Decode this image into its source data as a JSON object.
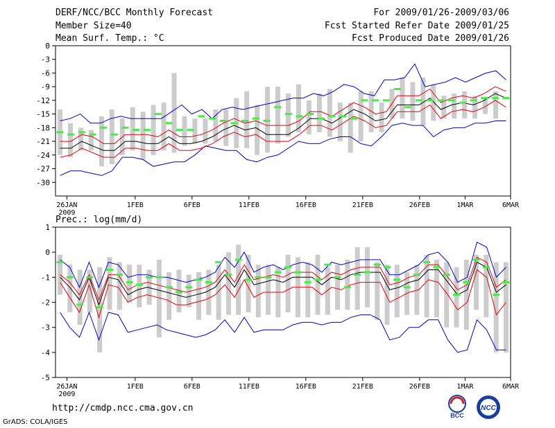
{
  "header": {
    "title": "DERF/NCC/BCC Monthly Forecast",
    "member_size": "Member Size=40",
    "variable": "Mean Surf. Temp.: °C",
    "period": "For 2009/01/26-2009/03/06",
    "started": "Fcst Started Refer Date 2009/01/25",
    "produced": "Fcst Produced Date 2009/01/26"
  },
  "footer": {
    "url": "http://cmdp.ncc.cma.gov.cn",
    "grads": "GrADS: COLA/IGES"
  },
  "logos": {
    "left": "BCC",
    "right": "NCC"
  },
  "colors": {
    "ensemble_mean": "#000000",
    "spread_inner": "#e8000b",
    "spread_outer": "#0000cc",
    "box": "#cccccc",
    "marker": "#44ee44"
  },
  "chart_data": [
    {
      "type": "line",
      "title": "Mean Surf. Temp.: °C",
      "ylabel": "°C",
      "ylim": [
        -33,
        0
      ],
      "yticks": [
        0,
        -3,
        -6,
        -9,
        -12,
        -15,
        -18,
        -21,
        -24,
        -27,
        -30
      ],
      "ytick_labels": [
        "0",
        "-3",
        "-6",
        "-9",
        "-12",
        "-15",
        "-18",
        "-21",
        "-24",
        "-27",
        "-30"
      ],
      "xlim": [
        0,
        40
      ],
      "xtick_pos": [
        1,
        7,
        12,
        17,
        22,
        27,
        32,
        36,
        40
      ],
      "xtick_labels": [
        "26JAN",
        "1FEB",
        "6FEB",
        "11FEB",
        "16FEB",
        "21FEB",
        "26FEB",
        "1MAR",
        "6MAR"
      ],
      "year_label": "2009",
      "series": [
        {
          "name": "ensemble mean",
          "values": [
            -22.5,
            -22.5,
            -21,
            -22,
            -23,
            -23,
            -21,
            -21,
            -21.5,
            -21.5,
            -20,
            -21.5,
            -21.5,
            -21,
            -20,
            -18.5,
            -17.5,
            -18.5,
            -18,
            -19.5,
            -19.5,
            -19.5,
            -18,
            -16,
            -16,
            -17,
            -15.5,
            -14,
            -15,
            -16.5,
            -16,
            -13,
            -13,
            -13,
            -11.5,
            -14,
            -13,
            -12.5,
            -13,
            -12,
            -10.5,
            -11.5
          ]
        },
        {
          "name": "mean + 1 sd",
          "values": [
            -21,
            -21,
            -19.5,
            -20,
            -21.5,
            -21.5,
            -19.5,
            -19.5,
            -19.5,
            -20,
            -18.5,
            -20,
            -20,
            -19.5,
            -18.5,
            -17,
            -16,
            -17,
            -16.5,
            -17.5,
            -17.5,
            -17.5,
            -16.5,
            -14.5,
            -14.5,
            -15.5,
            -14,
            -12.5,
            -13.5,
            -15,
            -14.5,
            -11,
            -11,
            -11,
            -9.5,
            -12.5,
            -11.5,
            -11,
            -11.5,
            -10.5,
            -9,
            -10
          ]
        },
        {
          "name": "mean - 1 sd",
          "values": [
            -24.5,
            -24,
            -22.5,
            -23.5,
            -24.5,
            -24.5,
            -22.5,
            -22.5,
            -23,
            -23,
            -21.5,
            -23,
            -23,
            -22.5,
            -21.5,
            -20,
            -19,
            -20,
            -19.5,
            -21,
            -21,
            -21,
            -19.5,
            -17.5,
            -17.5,
            -18.5,
            -17,
            -15.5,
            -16.5,
            -18,
            -17.5,
            -14.5,
            -14.5,
            -14.5,
            -13,
            -16,
            -14.5,
            -14,
            -14.5,
            -13.5,
            -12,
            -13.5
          ]
        },
        {
          "name": "max",
          "values": [
            -16.5,
            -16,
            -15,
            -17,
            -17,
            -16,
            -15.5,
            -16,
            -16,
            -16,
            -16,
            -14.5,
            -13,
            -15,
            -14,
            -16,
            -14,
            -13.5,
            -14,
            -13.5,
            -13,
            -12.5,
            -12,
            -11.5,
            -11.5,
            -10.5,
            -11,
            -10,
            -8.5,
            -9,
            -10.5,
            -11,
            -7.5,
            -7.5,
            -7,
            -4,
            -9,
            -8.5,
            -8,
            -7,
            -8,
            -7,
            -6,
            -5.5,
            -7.5
          ]
        },
        {
          "name": "min",
          "values": [
            -28.5,
            -27.5,
            -27.5,
            -28,
            -28.5,
            -27.5,
            -24.5,
            -24.5,
            -25,
            -26.5,
            -26,
            -25.5,
            -25.5,
            -24,
            -22,
            -22.5,
            -23,
            -23,
            -25,
            -25.5,
            -24.5,
            -24,
            -22.5,
            -21,
            -21.5,
            -21.5,
            -20.5,
            -20,
            -20,
            -21.5,
            -22,
            -20,
            -17.5,
            -17,
            -17.5,
            -17.5,
            -20,
            -18.5,
            -18,
            -18,
            -17,
            -17,
            -16.5,
            -16.5
          ]
        },
        {
          "name": "observed/marker",
          "values": [
            -19,
            -19.5,
            -19,
            -19.5,
            -18,
            -19.5,
            -18,
            -18.5,
            -18.5,
            -15,
            -17,
            -18.5,
            -18.5,
            -15.5,
            -16,
            -16.5,
            -17,
            -16.5,
            -16,
            -16.5,
            -13.5,
            -15,
            -15.5,
            -15,
            -16,
            -15.5,
            -15.5,
            -16,
            -12,
            -12,
            -12,
            -9.5,
            -13.5,
            -12,
            -12,
            -12,
            -12,
            -12.5,
            -12,
            -11.5,
            -11.5,
            -11.5
          ]
        },
        {
          "name": "box upper",
          "values": [
            -14,
            -17,
            -18,
            -18.5,
            -15.5,
            -14,
            -16,
            -13.5,
            -14.5,
            -13,
            -12.5,
            -6,
            -15.5,
            -16,
            -16,
            -14,
            -14,
            -11.5,
            -10,
            -13,
            -9,
            -9,
            -10.5,
            -8.5,
            -12,
            -10.5,
            -9.5,
            -12.5,
            -12.5,
            -10,
            -10,
            -12.5,
            -9.5,
            -7,
            -8,
            -7,
            -8.5,
            -11,
            -10.5,
            -10,
            -11,
            -11.5,
            -10,
            -9
          ]
        },
        {
          "name": "box lower",
          "values": [
            -24,
            -24.5,
            -23,
            -23,
            -26.5,
            -26,
            -24,
            -23,
            -25,
            -24,
            -23,
            -23.5,
            -22,
            -21.5,
            -21.5,
            -21,
            -22,
            -22.5,
            -22.5,
            -24,
            -23.5,
            -21.5,
            -20,
            -19,
            -19.5,
            -19,
            -20,
            -21,
            -23.5,
            -21,
            -19,
            -19,
            -16,
            -16,
            -16.5,
            -17.5,
            -16.5,
            -16,
            -16,
            -16,
            -16,
            -15,
            -16
          ]
        }
      ]
    },
    {
      "type": "line",
      "title": "Prec.: log(mm/d)",
      "ylabel": "log(mm/d)",
      "ylim": [
        -5,
        1
      ],
      "yticks": [
        1,
        0,
        -1,
        -2,
        -3,
        -4,
        -5
      ],
      "ytick_labels": [
        "1",
        "0",
        "-1",
        "-2",
        "-3",
        "-4",
        "-5"
      ],
      "xlim": [
        0,
        40
      ],
      "xtick_pos": [
        1,
        7,
        12,
        17,
        22,
        27,
        32,
        36,
        40
      ],
      "xtick_labels": [
        "26JAN",
        "1FEB",
        "6FEB",
        "11FEB",
        "16FEB",
        "21FEB",
        "26FEB",
        "1MAR",
        "6MAR"
      ],
      "year_label": "2009",
      "series": [
        {
          "name": "ensemble mean",
          "values": [
            -1,
            -1.4,
            -1.9,
            -1,
            -2.1,
            -1,
            -1.1,
            -1.7,
            -1.5,
            -1.4,
            -1.5,
            -1.6,
            -1.7,
            -1.8,
            -1.7,
            -1.6,
            -1.4,
            -0.9,
            -1.4,
            -0.7,
            -1.3,
            -1.2,
            -1.1,
            -1.2,
            -1,
            -1,
            -1,
            -1.3,
            -1,
            -1.1,
            -0.9,
            -0.8,
            -0.8,
            -0.8,
            -1.5,
            -1.4,
            -1.2,
            -1.1,
            -0.7,
            -0.7,
            -1.2,
            -1.7,
            -1.5,
            -0.4,
            -0.6,
            -1.6,
            -1.3
          ]
        },
        {
          "name": "mean + 1 sd",
          "values": [
            -0.9,
            -1.2,
            -1.7,
            -0.9,
            -1.9,
            -0.9,
            -0.9,
            -1.5,
            -1.3,
            -1.2,
            -1.3,
            -1.4,
            -1.5,
            -1.6,
            -1.5,
            -1.4,
            -1.2,
            -0.7,
            -1.2,
            -0.5,
            -1.1,
            -1,
            -0.9,
            -1,
            -0.8,
            -0.8,
            -0.8,
            -1.1,
            -0.8,
            -0.9,
            -0.7,
            -0.6,
            -0.6,
            -0.6,
            -1.3,
            -1.2,
            -1,
            -0.9,
            -0.5,
            -0.5,
            -1,
            -1.5,
            -1.3,
            -0.2,
            -0.4,
            -1.4,
            -1.1
          ]
        },
        {
          "name": "mean - 1 sd",
          "values": [
            -1.2,
            -1.8,
            -2.4,
            -1.3,
            -2.6,
            -1.3,
            -1.4,
            -2,
            -1.8,
            -1.7,
            -1.8,
            -1.9,
            -2.1,
            -2.1,
            -2,
            -1.9,
            -1.7,
            -1.3,
            -1.8,
            -1.1,
            -1.8,
            -1.6,
            -1.6,
            -1.6,
            -1.4,
            -1.4,
            -1.4,
            -1.7,
            -1.4,
            -1.5,
            -1.3,
            -1.2,
            -1.2,
            -1.2,
            -2,
            -1.8,
            -1.6,
            -1.5,
            -1.1,
            -1.2,
            -1.7,
            -2.3,
            -2,
            -0.7,
            -1,
            -2.5,
            -2
          ]
        },
        {
          "name": "max",
          "values": [
            -0.3,
            -0.6,
            -1.4,
            -0.4,
            -1.4,
            -0.4,
            -0.5,
            -1,
            -0.9,
            -0.9,
            -1,
            -1,
            -1.1,
            -1.2,
            -1.1,
            -1,
            -0.8,
            -0.2,
            -0.6,
            0,
            -0.8,
            -0.6,
            -0.5,
            -0.7,
            -0.5,
            -0.4,
            -0.5,
            -0.8,
            -0.4,
            -0.5,
            -0.4,
            -0.3,
            -0.3,
            -0.3,
            -0.9,
            -0.9,
            -0.7,
            -0.5,
            -0.1,
            0,
            -0.4,
            -1.2,
            -1,
            0.4,
            0.2,
            -1,
            -0.6
          ]
        },
        {
          "name": "min",
          "values": [
            -2.4,
            -3,
            -3.4,
            -2.4,
            -3.5,
            -2.4,
            -2.5,
            -3.2,
            -3.1,
            -3,
            -2.9,
            -3.1,
            -3.2,
            -3.3,
            -3.4,
            -3.3,
            -3.1,
            -2.7,
            -3.2,
            -2.6,
            -3.2,
            -3.1,
            -3.1,
            -3.1,
            -2.9,
            -2.8,
            -2.8,
            -2.9,
            -2.8,
            -2.8,
            -2.6,
            -2.5,
            -2.5,
            -2.7,
            -3.5,
            -3.4,
            -3,
            -3,
            -2.7,
            -2.7,
            -3.5,
            -4,
            -3.9,
            -2.7,
            -3.1,
            -3.9,
            -3.9
          ]
        },
        {
          "name": "observed/marker",
          "values": [
            -0.4,
            -1,
            -2.1,
            -1,
            -2.2,
            -0.7,
            -0.9,
            -1.2,
            -1.3,
            -1,
            -1,
            -1.4,
            -1.6,
            -1.4,
            -1.1,
            -1.2,
            -0.4,
            -0.9,
            -0.3,
            -1.1,
            -1,
            -1,
            -0.8,
            -0.6,
            -0.8,
            -1.2,
            -1.1,
            -0.5,
            -1,
            -1.4,
            -0.9,
            -0.8,
            -0.5,
            -0.6,
            -1.1,
            -1.4,
            -0.9,
            -0.4,
            -0.6,
            -0.9,
            -1.7,
            -1.2,
            -0.3,
            -0.6,
            -1.7,
            -1.2
          ]
        },
        {
          "name": "box upper",
          "values": [
            -0.1,
            -0.5,
            -0.7,
            -0.7,
            -0.6,
            -0.2,
            -0.4,
            -0.5,
            -0.5,
            -0.7,
            -0.3,
            -0.8,
            -0.7,
            -0.9,
            -0.8,
            -0.7,
            -0.5,
            0,
            0.3,
            -0.1,
            -0.5,
            -0.5,
            -0.6,
            -0.1,
            -0.2,
            -0.4,
            -0.1,
            -0.6,
            -0.5,
            -0.3,
            0.2,
            0.2,
            -0.4,
            -0.5,
            -0.5,
            -0.8,
            -0.5,
            -0.1,
            -0.3,
            -0.4,
            -0.6,
            -0.3,
            -0.1,
            -0.1,
            -0.4,
            -0.4
          ]
        },
        {
          "name": "box lower",
          "values": [
            -1.7,
            -2.4,
            -2.9,
            -2.4,
            -4,
            -2.3,
            -2.3,
            -2,
            -2.2,
            -2.1,
            -3.4,
            -2.7,
            -2.4,
            -2.2,
            -2.7,
            -2.5,
            -2.7,
            -2.5,
            -2.5,
            -2.4,
            -2.6,
            -2.5,
            -2.6,
            -2.4,
            -2.6,
            -2.6,
            -2.5,
            -2.5,
            -2.3,
            -2.3,
            -2.3,
            -2.2,
            -2.7,
            -2.9,
            -2.6,
            -2.5,
            -2.5,
            -2.6,
            -2.6,
            -3,
            -3,
            -3.1,
            -2.3,
            -2.6,
            -4,
            -4
          ]
        }
      ]
    }
  ]
}
